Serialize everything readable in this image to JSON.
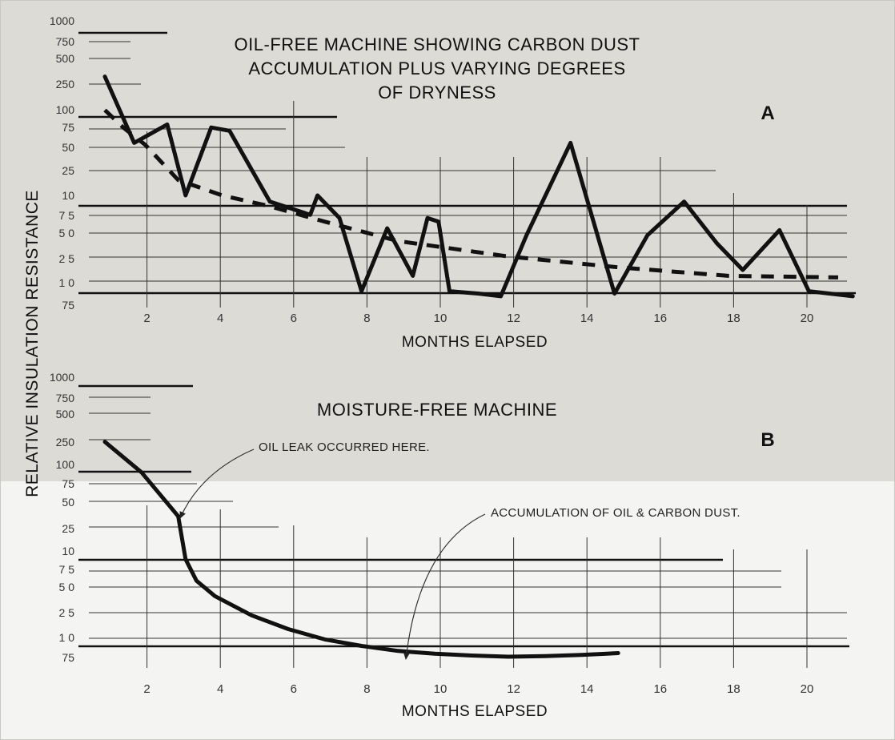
{
  "ylabel": "RELATIVE INSULATION RESISTANCE",
  "colors": {
    "ink": "#111111",
    "grid": "#333333",
    "background_top": "#dcdbd6",
    "background_bottom": "#f4f4f2"
  },
  "chart_data": [
    {
      "type": "line",
      "panel_label": "A",
      "title": [
        "OIL-FREE MACHINE SHOWING CARBON DUST",
        "ACCUMULATION PLUS VARYING DEGREES",
        "OF DRYNESS"
      ],
      "xlabel": "MONTHS ELAPSED",
      "ylabel": "RELATIVE INSULATION RESISTANCE",
      "y_scale": "log",
      "y_tick_labels": [
        "1000",
        "750",
        "500",
        "250",
        "100",
        "75",
        "50",
        "25",
        "10",
        "7 5",
        "5 0",
        "2 5",
        "1 0",
        "75"
      ],
      "x_tick_labels": [
        "2",
        "4",
        "6",
        "8",
        "10",
        "12",
        "14",
        "16",
        "18",
        "20"
      ],
      "xlim": [
        0,
        20.4
      ],
      "series": [
        {
          "style": "solid",
          "x": [
            0,
            0.8,
            1.7,
            2.2,
            2.9,
            3.4,
            4.5,
            5.6,
            5.8,
            6.4,
            7.0,
            7.7,
            8.4,
            8.8,
            9.1,
            9.4,
            10.2,
            10.8,
            11.5,
            12.7,
            13.9,
            14.8,
            15.8,
            16.7,
            17.4,
            18.4,
            19.2,
            20.4
          ],
          "y": [
            230,
            40,
            65,
            10,
            60,
            55,
            8.5,
            6,
            10,
            5.5,
            0.8,
            4.2,
            1.2,
            5.5,
            5,
            0.8,
            0.75,
            0.7,
            3.5,
            40,
            0.75,
            3.5,
            8.5,
            2.8,
            1.4,
            4,
            0.8,
            0.7
          ]
        },
        {
          "style": "dashed",
          "x": [
            0,
            0.5,
            1.1,
            2.0,
            3.2,
            4.5,
            6.0,
            8.0,
            11.0,
            14.0,
            17.0,
            20.0
          ],
          "y": [
            95,
            60,
            38,
            15,
            10,
            7.5,
            5,
            3,
            2,
            1.5,
            1.2,
            1.15
          ]
        }
      ]
    },
    {
      "type": "line",
      "panel_label": "B",
      "title": [
        "MOISTURE-FREE MACHINE"
      ],
      "xlabel": "MONTHS ELAPSED",
      "ylabel": "RELATIVE INSULATION RESISTANCE",
      "y_scale": "log",
      "y_tick_labels": [
        "1000",
        "750",
        "500",
        "250",
        "100",
        "75",
        "50",
        "25",
        "10",
        "7 5",
        "5 0",
        "2 5",
        "1 0",
        "75"
      ],
      "x_tick_labels": [
        "2",
        "4",
        "6",
        "8",
        "10",
        "12",
        "14",
        "16",
        "18",
        "20"
      ],
      "xlim": [
        0,
        20
      ],
      "series": [
        {
          "style": "solid",
          "x": [
            0,
            1.0,
            2.0,
            2.2,
            2.5,
            3.0,
            4.0,
            5.0,
            6.0,
            7.0,
            8.0,
            9.0,
            10.0,
            11.0,
            12.0,
            13.0,
            14.0
          ],
          "y": [
            180,
            80,
            25,
            8,
            4.5,
            3,
            1.8,
            1.25,
            0.95,
            0.8,
            0.7,
            0.65,
            0.62,
            0.6,
            0.61,
            0.63,
            0.66
          ]
        }
      ],
      "annotations": [
        {
          "text": "OIL LEAK OCCURRED HERE.",
          "x": 2,
          "y": 25
        },
        {
          "text": "ACCUMULATION OF OIL & CARBON DUST.",
          "x": 8.2,
          "y": 0.7
        }
      ]
    }
  ]
}
